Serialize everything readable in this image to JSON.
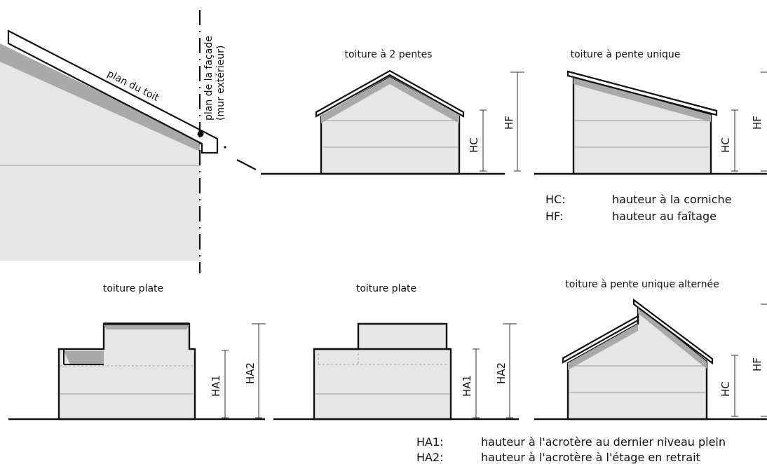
{
  "detail": {
    "roof_plane": "plan du toit",
    "facade_plane_line1": "plan de la façade",
    "facade_plane_line2": "(mur extérieur)"
  },
  "titles": {
    "two_slopes": "toiture à 2 pentes",
    "single_slope": "toiture à pente unique",
    "flat_1": "toiture plate",
    "flat_2": "toiture plate",
    "single_slope_alt": "toiture à pente unique alternée"
  },
  "dimensions": {
    "hc": "HC",
    "hf": "HF",
    "ha1": "HA1",
    "ha2": "HA2"
  },
  "legend_top": [
    {
      "code": "HC:",
      "text": "hauteur à la corniche"
    },
    {
      "code": "HF:",
      "text": "hauteur au faîtage"
    }
  ],
  "legend_bottom": [
    {
      "code": "HA1:",
      "text": "hauteur à l'acrotère au dernier niveau plein"
    },
    {
      "code": "HA2:",
      "text": "hauteur à l'acrotère à l'étage en retrait"
    }
  ]
}
